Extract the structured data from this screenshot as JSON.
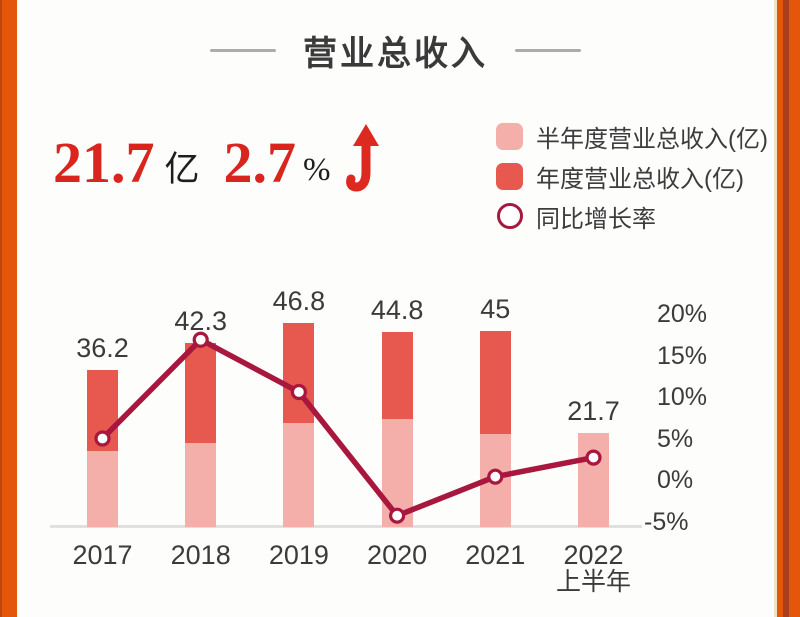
{
  "page": {
    "title": "营业总收入",
    "accent_orange": "#E4570A",
    "accent_stripe": "#A93E1D"
  },
  "stat": {
    "revenue_value": "21.7",
    "revenue_unit": "亿",
    "growth_value": "2.7",
    "growth_unit": "%",
    "trend_icon": "up-arrow",
    "number_color": "#D8251E"
  },
  "legend": {
    "items": [
      {
        "label": "半年度营业总收入(亿)",
        "swatch": "square",
        "color": "#F4AFAA"
      },
      {
        "label": "年度营业总收入(亿)",
        "swatch": "square",
        "color": "#E7584E"
      },
      {
        "label": "同比增长率",
        "swatch": "circle",
        "color": "#A8173D"
      }
    ]
  },
  "chart_data": {
    "type": "bar",
    "subtype": "stacked-bars-with-line-overlay",
    "title": "营业总收入",
    "categories": [
      {
        "label": "2017",
        "sublabel": ""
      },
      {
        "label": "2018",
        "sublabel": ""
      },
      {
        "label": "2019",
        "sublabel": ""
      },
      {
        "label": "2020",
        "sublabel": ""
      },
      {
        "label": "2021",
        "sublabel": ""
      },
      {
        "label": "2022",
        "sublabel": "上半年"
      }
    ],
    "bar_total_labels": [
      "36.2",
      "42.3",
      "46.8",
      "44.8",
      "45",
      "21.7"
    ],
    "series": [
      {
        "name": "半年度营业总收入(亿)",
        "type": "bar-segment-bottom",
        "color": "#F4AFAA",
        "values": [
          17.4,
          19.4,
          23.8,
          24.9,
          21.3,
          21.7
        ]
      },
      {
        "name": "年度营业总收入(亿)",
        "type": "bar-total",
        "color": "#E7584E",
        "values": [
          36.2,
          42.3,
          46.8,
          44.8,
          45,
          null
        ]
      },
      {
        "name": "同比增长率",
        "type": "line",
        "unit": "%",
        "color": "#A8173D",
        "marker": "open-circle",
        "values": [
          5.0,
          16.9,
          10.6,
          -4.3,
          0.4,
          2.7
        ]
      }
    ],
    "right_axis": {
      "tick_labels": [
        "20%",
        "15%",
        "10%",
        "5%",
        "0%",
        "-5%"
      ],
      "tick_values": [
        20,
        15,
        10,
        5,
        0,
        -5
      ],
      "min": -5,
      "max": 20
    },
    "left_axis": null,
    "grid": false,
    "legend_position": "top-right"
  }
}
